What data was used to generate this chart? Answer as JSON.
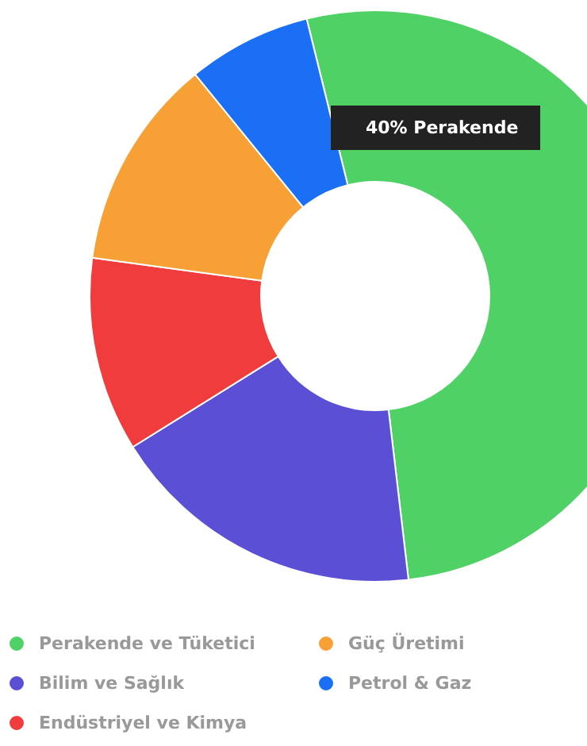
{
  "chart_data": {
    "type": "donut",
    "categories": [
      "Perakende ve Tüketici",
      "Bilim ve Sağlık",
      "Endüstriyel ve Kimya",
      "Güç Üretimi",
      "Petrol & Gaz"
    ],
    "values": [
      52,
      18,
      11,
      12,
      7
    ],
    "colors": [
      "#4fd166",
      "#5b4fd6",
      "#f03c3c",
      "#f7a035",
      "#1a6ff5"
    ],
    "annotations": [
      "40% Perakende"
    ],
    "legend": "bottom"
  }
}
